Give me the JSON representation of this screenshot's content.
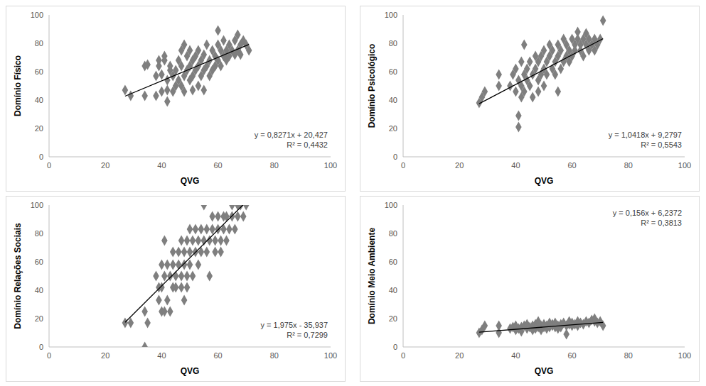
{
  "chart_data": [
    {
      "type": "scatter",
      "y_label": "Domínio Físico",
      "x_label": "QVG",
      "xlim": [
        0,
        100
      ],
      "xticks": [
        0,
        20,
        40,
        60,
        80,
        100
      ],
      "ylim": [
        0,
        100
      ],
      "yticks": [
        0,
        20,
        40,
        60,
        80,
        100
      ],
      "grid": false,
      "color": "#7f7f7f",
      "marker": "diamond",
      "x": [
        27,
        29,
        34,
        35,
        34,
        38,
        38,
        39,
        39,
        40,
        40,
        41,
        41,
        42,
        42,
        42,
        43,
        43,
        44,
        44,
        45,
        45,
        46,
        46,
        47,
        47,
        47,
        48,
        48,
        48,
        49,
        49,
        50,
        50,
        50,
        51,
        51,
        51,
        52,
        52,
        53,
        53,
        53,
        54,
        54,
        55,
        55,
        55,
        56,
        56,
        57,
        57,
        58,
        58,
        59,
        59,
        60,
        60,
        60,
        61,
        61,
        62,
        62,
        63,
        63,
        64,
        64,
        65,
        66,
        66,
        67,
        67,
        68,
        68,
        69,
        70,
        71
      ],
      "values": [
        47,
        43,
        64,
        65,
        43,
        43,
        57,
        64,
        68,
        46,
        58,
        71,
        68,
        47,
        39,
        54,
        61,
        64,
        57,
        46,
        50,
        61,
        68,
        54,
        64,
        75,
        50,
        57,
        79,
        46,
        61,
        71,
        54,
        64,
        75,
        57,
        68,
        47,
        61,
        71,
        50,
        64,
        75,
        57,
        68,
        61,
        72,
        47,
        64,
        79,
        57,
        68,
        75,
        61,
        64,
        71,
        68,
        79,
        89,
        75,
        64,
        82,
        71,
        68,
        75,
        79,
        71,
        75,
        72,
        82,
        86,
        75,
        79,
        72,
        82,
        79,
        75
      ],
      "trendline": {
        "slope": 0.8271,
        "intercept": 20.427
      },
      "annotations": [
        "y = 0,8271x + 20,427",
        "R² = 0,4432"
      ]
    },
    {
      "type": "scatter",
      "y_label": "Domínio Psicológico",
      "x_label": "QVG",
      "xlim": [
        0,
        100
      ],
      "xticks": [
        0,
        20,
        40,
        60,
        80,
        100
      ],
      "ylim": [
        0,
        100
      ],
      "yticks": [
        0,
        20,
        40,
        60,
        80,
        100
      ],
      "grid": false,
      "color": "#7f7f7f",
      "marker": "diamond",
      "x": [
        27,
        28,
        29,
        34,
        34,
        38,
        39,
        40,
        40,
        41,
        41,
        41,
        42,
        42,
        42,
        43,
        43,
        43,
        44,
        44,
        45,
        45,
        46,
        46,
        47,
        47,
        48,
        48,
        48,
        49,
        49,
        50,
        50,
        50,
        51,
        51,
        52,
        52,
        53,
        53,
        54,
        54,
        55,
        55,
        55,
        56,
        56,
        57,
        57,
        58,
        58,
        59,
        59,
        60,
        60,
        61,
        61,
        62,
        62,
        63,
        63,
        64,
        64,
        65,
        65,
        66,
        66,
        67,
        68,
        68,
        69,
        70,
        71
      ],
      "values": [
        38,
        42,
        46,
        58,
        50,
        50,
        58,
        46,
        62,
        29,
        21,
        54,
        42,
        67,
        50,
        79,
        58,
        46,
        54,
        62,
        50,
        67,
        58,
        42,
        62,
        71,
        54,
        67,
        46,
        58,
        71,
        62,
        75,
        50,
        67,
        58,
        71,
        79,
        62,
        75,
        67,
        58,
        71,
        46,
        79,
        62,
        75,
        67,
        83,
        71,
        79,
        75,
        67,
        83,
        71,
        79,
        75,
        83,
        88,
        75,
        79,
        83,
        71,
        79,
        87,
        75,
        83,
        79,
        83,
        75,
        79,
        83,
        96
      ],
      "trendline": {
        "slope": 1.0418,
        "intercept": 9.2797
      },
      "annotations": [
        "y = 1,0418x + 9,2797",
        "R² = 0,5543"
      ]
    },
    {
      "type": "scatter",
      "y_label": "Domínio Relações Sociais",
      "x_label": "QVG",
      "xlim": [
        0,
        100
      ],
      "xticks": [
        0,
        20,
        40,
        60,
        80,
        100
      ],
      "ylim": [
        0,
        100
      ],
      "yticks": [
        0,
        20,
        40,
        60,
        80,
        100
      ],
      "grid": false,
      "color": "#7f7f7f",
      "marker": "diamond",
      "x": [
        27,
        29,
        34,
        34,
        35,
        38,
        39,
        39,
        40,
        40,
        40,
        41,
        41,
        41,
        42,
        42,
        43,
        43,
        44,
        44,
        44,
        45,
        45,
        46,
        46,
        47,
        47,
        47,
        48,
        48,
        48,
        49,
        49,
        49,
        50,
        50,
        50,
        51,
        51,
        52,
        52,
        53,
        53,
        54,
        54,
        55,
        55,
        56,
        56,
        57,
        57,
        58,
        58,
        59,
        59,
        60,
        60,
        61,
        61,
        62,
        62,
        63,
        63,
        64,
        65,
        65,
        66,
        67,
        67,
        68,
        69,
        70
      ],
      "values": [
        17,
        17,
        25,
        0,
        17,
        50,
        42,
        33,
        25,
        58,
        42,
        75,
        50,
        25,
        58,
        33,
        25,
        50,
        42,
        58,
        67,
        50,
        42,
        67,
        58,
        75,
        42,
        50,
        67,
        58,
        33,
        75,
        50,
        42,
        67,
        58,
        83,
        75,
        50,
        67,
        83,
        75,
        58,
        67,
        83,
        75,
        100,
        67,
        83,
        50,
        75,
        92,
        83,
        75,
        67,
        92,
        83,
        75,
        67,
        92,
        83,
        75,
        92,
        83,
        92,
        100,
        83,
        100,
        92,
        100,
        92,
        100
      ],
      "trendline": {
        "slope": 1.975,
        "intercept": -35.937
      },
      "annotations": [
        "y = 1,975x - 35,937",
        "R² = 0,7299"
      ]
    },
    {
      "type": "scatter",
      "y_label": "Domínio Meio Ambiente",
      "x_label": "QVG",
      "xlim": [
        0,
        100
      ],
      "xticks": [
        0,
        20,
        40,
        60,
        80,
        100
      ],
      "ylim": [
        0,
        100
      ],
      "yticks": [
        0,
        20,
        40,
        60,
        80,
        100
      ],
      "grid": false,
      "color": "#7f7f7f",
      "marker": "diamond",
      "x": [
        27,
        28,
        29,
        34,
        34,
        38,
        39,
        40,
        40,
        41,
        42,
        42,
        43,
        44,
        44,
        45,
        46,
        46,
        47,
        47,
        48,
        48,
        49,
        49,
        50,
        50,
        51,
        51,
        52,
        52,
        53,
        53,
        54,
        54,
        55,
        55,
        56,
        56,
        57,
        58,
        58,
        59,
        59,
        60,
        60,
        61,
        62,
        62,
        63,
        64,
        65,
        66,
        67,
        68,
        68,
        69,
        70,
        71
      ],
      "values": [
        10,
        12,
        15,
        10,
        15,
        13,
        14,
        12,
        15,
        13,
        14,
        11,
        15,
        13,
        16,
        14,
        12,
        15,
        16,
        13,
        14,
        18,
        15,
        12,
        16,
        14,
        15,
        13,
        17,
        14,
        15,
        16,
        14,
        17,
        15,
        13,
        16,
        14,
        17,
        15,
        9,
        16,
        18,
        17,
        15,
        16,
        18,
        15,
        17,
        16,
        18,
        17,
        19,
        18,
        20,
        17,
        18,
        15
      ],
      "trendline": {
        "slope": 0.156,
        "intercept": 6.2372
      },
      "annotations": [
        "y = 0,156x + 6,2372",
        "R² = 0,3813"
      ]
    }
  ]
}
